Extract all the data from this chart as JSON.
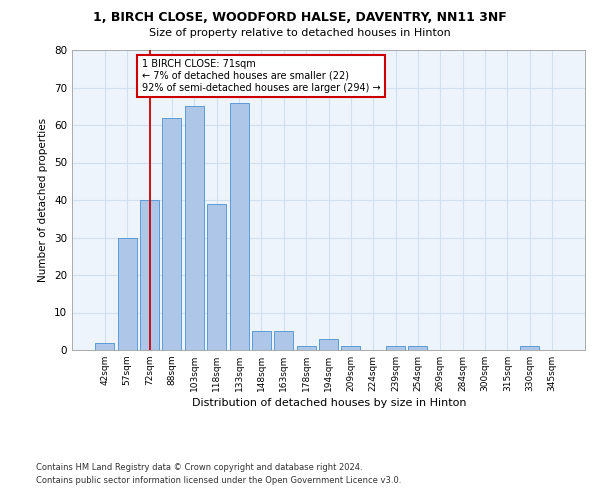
{
  "title1": "1, BIRCH CLOSE, WOODFORD HALSE, DAVENTRY, NN11 3NF",
  "title2": "Size of property relative to detached houses in Hinton",
  "xlabel": "Distribution of detached houses by size in Hinton",
  "ylabel": "Number of detached properties",
  "categories": [
    "42sqm",
    "57sqm",
    "72sqm",
    "88sqm",
    "103sqm",
    "118sqm",
    "133sqm",
    "148sqm",
    "163sqm",
    "178sqm",
    "194sqm",
    "209sqm",
    "224sqm",
    "239sqm",
    "254sqm",
    "269sqm",
    "284sqm",
    "300sqm",
    "315sqm",
    "330sqm",
    "345sqm"
  ],
  "values": [
    2,
    30,
    40,
    62,
    65,
    39,
    66,
    5,
    5,
    1,
    3,
    1,
    0,
    1,
    1,
    0,
    0,
    0,
    0,
    1,
    0
  ],
  "bar_color": "#aec6e8",
  "bar_edge_color": "#5b9bd5",
  "grid_color": "#d0e0f0",
  "background_color": "#eef4fb",
  "annotation_text": "1 BIRCH CLOSE: 71sqm\n← 7% of detached houses are smaller (22)\n92% of semi-detached houses are larger (294) →",
  "annotation_box_color": "#ffffff",
  "annotation_box_edge_color": "#cc0000",
  "red_line_x": 2,
  "ylim": [
    0,
    80
  ],
  "yticks": [
    0,
    10,
    20,
    30,
    40,
    50,
    60,
    70,
    80
  ],
  "footer1": "Contains HM Land Registry data © Crown copyright and database right 2024.",
  "footer2": "Contains public sector information licensed under the Open Government Licence v3.0."
}
